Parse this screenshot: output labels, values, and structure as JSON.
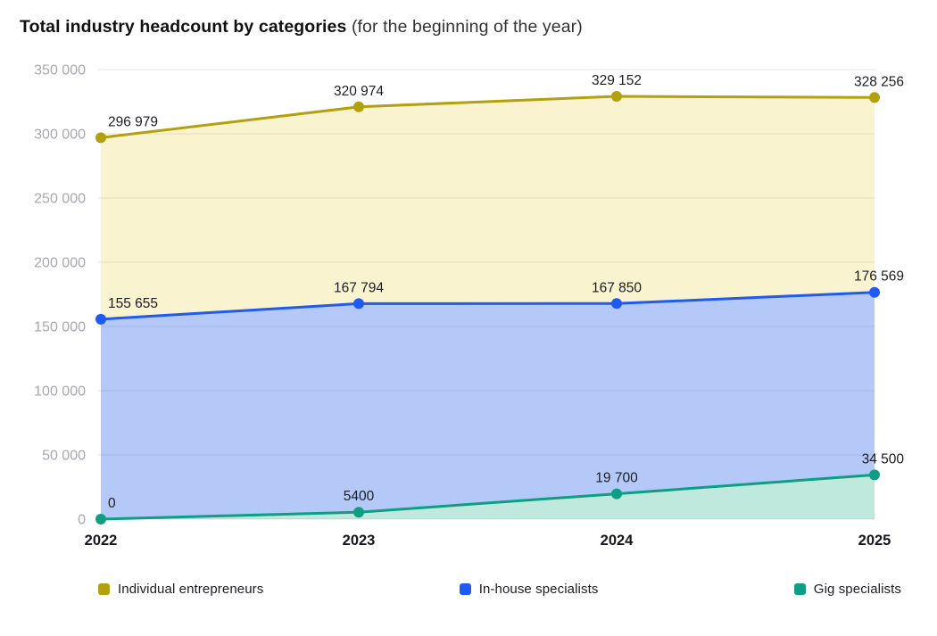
{
  "title": {
    "bold": "Total industry headcount by categories",
    "normal": " (for the beginning of the year)"
  },
  "chart_data": {
    "type": "area",
    "title": "Total industry headcount by categories (for the beginning of the year)",
    "categories": [
      "2022",
      "2023",
      "2024",
      "2025"
    ],
    "xlabel": "",
    "ylabel": "",
    "y_axis": {
      "min": 0,
      "max": 350000,
      "step": 50000,
      "tick_labels": [
        "0",
        "50 000",
        "100 000",
        "150 000",
        "200 000",
        "250 000",
        "300 000",
        "350 000"
      ]
    },
    "grid": true,
    "legend_position": "bottom",
    "series": [
      {
        "name": "Individual entrepreneurs",
        "values": [
          296979,
          320974,
          329152,
          328256
        ],
        "labels": [
          "296 979",
          "320 974",
          "329 152",
          "328 256"
        ],
        "line_color": "#b3a00f",
        "fill_color": "#faf3cf"
      },
      {
        "name": "In-house specialists",
        "values": [
          155655,
          167794,
          167850,
          176569
        ],
        "labels": [
          "155 655",
          "167 794",
          "167 850",
          "176 569"
        ],
        "line_color": "#1f5af2",
        "fill_color": "#b5c9f8"
      },
      {
        "name": "Gig specialists",
        "values": [
          0,
          5400,
          19700,
          34500
        ],
        "labels": [
          "0",
          "5400",
          "19 700",
          "34 500"
        ],
        "line_color": "#0d9e84",
        "fill_color": "#bfe9dd"
      }
    ]
  },
  "colors": {
    "grid_line": "rgba(100,100,112,0.16)",
    "axis_tick_label": "#a7a7ad",
    "x_axis_label": "#16161d",
    "data_label": "#1c1c24"
  }
}
